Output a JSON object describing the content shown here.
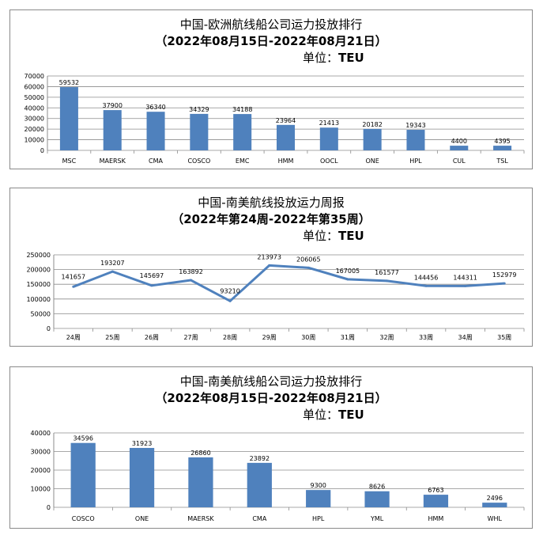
{
  "colors": {
    "bar": "#4f81bd",
    "line": "#4f81bd",
    "grid": "#8c8c8c",
    "axis": "#8c8c8c"
  },
  "chart_data": [
    {
      "type": "bar",
      "title": "中国-欧洲航线船公司运力投放排行",
      "subtitle": "（2022年08月15日-2022年08月21日）",
      "unit_label": "单位：",
      "unit_value": "TEU",
      "categories": [
        "MSC",
        "MAERSK",
        "CMA",
        "COSCO",
        "EMC",
        "HMM",
        "OOCL",
        "ONE",
        "HPL",
        "CUL",
        "TSL"
      ],
      "values": [
        59532,
        37900,
        36340,
        34329,
        34188,
        23964,
        21413,
        20182,
        19343,
        4400,
        4395
      ],
      "ylim": [
        0,
        70000
      ],
      "yticks": [
        0,
        10000,
        20000,
        30000,
        40000,
        50000,
        60000,
        70000
      ],
      "grid": true
    },
    {
      "type": "line",
      "title": "中国-南美航线投放运力周报",
      "subtitle": "（2022年第24周-2022年第35周）",
      "unit_label": "单位：",
      "unit_value": "TEU",
      "categories": [
        "24周",
        "25周",
        "26周",
        "27周",
        "28周",
        "29周",
        "30周",
        "31周",
        "32周",
        "33周",
        "34周",
        "35周"
      ],
      "values": [
        141657,
        193207,
        145697,
        163892,
        93210,
        213973,
        206065,
        167005,
        161577,
        144456,
        144311,
        152979
      ],
      "ylim": [
        0,
        250000
      ],
      "yticks": [
        0,
        50000,
        100000,
        150000,
        200000,
        250000
      ],
      "grid": true
    },
    {
      "type": "bar",
      "title": "中国-南美航线船公司运力投放排行",
      "subtitle": "（2022年08月15日-2022年08月21日）",
      "unit_label": "单位：",
      "unit_value": "TEU",
      "categories": [
        "COSCO",
        "ONE",
        "MAERSK",
        "CMA",
        "HPL",
        "YML",
        "HMM",
        "WHL"
      ],
      "values": [
        34596,
        31923,
        26860,
        23892,
        9300,
        8626,
        6763,
        2496
      ],
      "ylim": [
        0,
        40000
      ],
      "yticks": [
        0,
        10000,
        20000,
        30000,
        40000
      ],
      "grid": true
    }
  ]
}
